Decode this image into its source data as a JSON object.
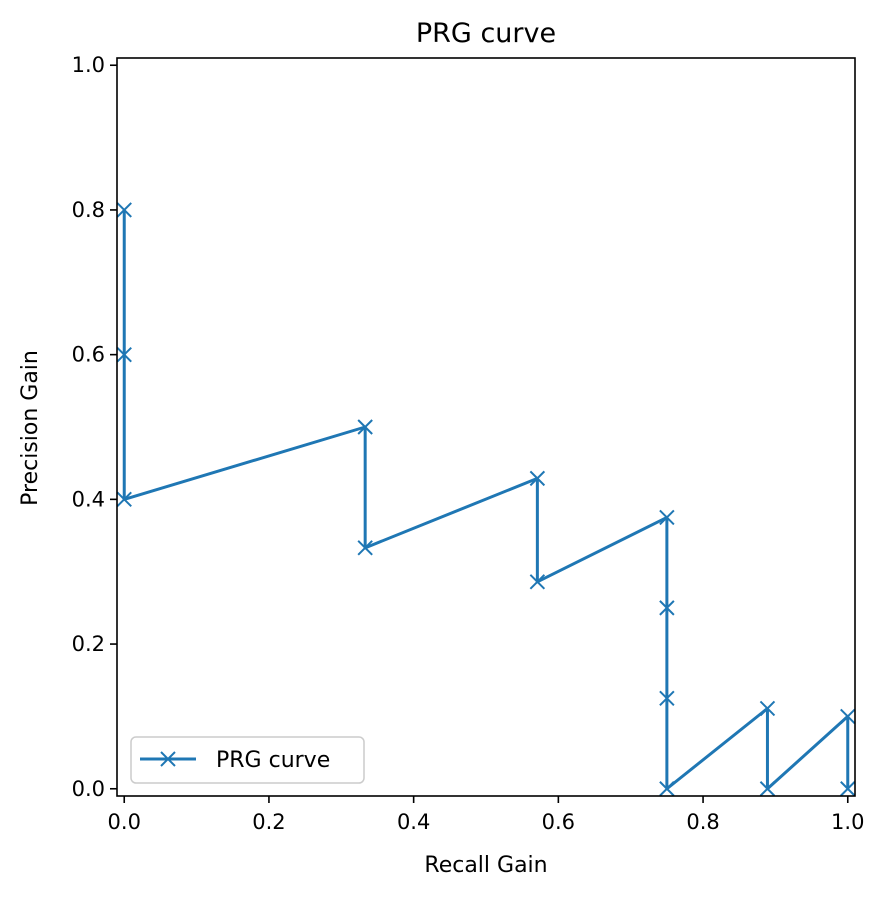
{
  "chart_data": {
    "type": "line",
    "title": "PRG curve",
    "xlabel": "Recall Gain",
    "ylabel": "Precision Gain",
    "xlim": [
      -0.01,
      1.01
    ],
    "ylim": [
      -0.01,
      1.01
    ],
    "xticks": [
      "0.0",
      "0.2",
      "0.4",
      "0.6",
      "0.8",
      "1.0"
    ],
    "yticks": [
      "0.0",
      "0.2",
      "0.4",
      "0.6",
      "0.8",
      "1.0"
    ],
    "grid": false,
    "legend_position": "lower-left",
    "series": [
      {
        "name": "PRG curve",
        "color": "#1f77b4",
        "marker": "x",
        "x": [
          0.0,
          0.0,
          0.0,
          0.333,
          0.333,
          0.571,
          0.571,
          0.75,
          0.75,
          0.75,
          0.75,
          0.889,
          0.889,
          1.0,
          1.0
        ],
        "y": [
          0.8,
          0.6,
          0.4,
          0.5,
          0.333,
          0.429,
          0.286,
          0.375,
          0.25,
          0.125,
          0.0,
          0.111,
          0.0,
          0.1,
          0.0
        ]
      }
    ]
  }
}
